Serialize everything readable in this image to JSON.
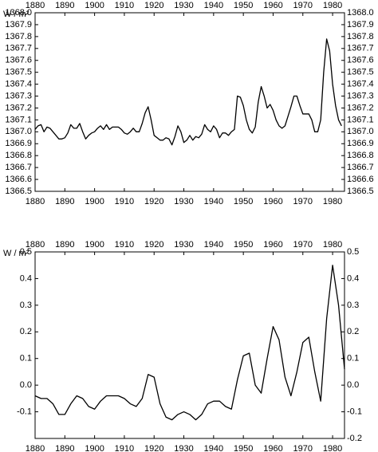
{
  "chart_data": [
    {
      "type": "line",
      "y_label": "W / m²",
      "x": [
        1880,
        1881,
        1882,
        1883,
        1884,
        1885,
        1886,
        1887,
        1888,
        1889,
        1890,
        1891,
        1892,
        1893,
        1894,
        1895,
        1896,
        1897,
        1898,
        1899,
        1900,
        1901,
        1902,
        1903,
        1904,
        1905,
        1906,
        1907,
        1908,
        1909,
        1910,
        1911,
        1912,
        1913,
        1914,
        1915,
        1916,
        1917,
        1918,
        1919,
        1920,
        1921,
        1922,
        1923,
        1924,
        1925,
        1926,
        1927,
        1928,
        1929,
        1930,
        1931,
        1932,
        1933,
        1934,
        1935,
        1936,
        1937,
        1938,
        1939,
        1940,
        1941,
        1942,
        1943,
        1944,
        1945,
        1946,
        1947,
        1948,
        1949,
        1950,
        1951,
        1952,
        1953,
        1954,
        1955,
        1956,
        1957,
        1958,
        1959,
        1960,
        1961,
        1962,
        1963,
        1964,
        1965,
        1966,
        1967,
        1968,
        1969,
        1970,
        1971,
        1972,
        1973,
        1974,
        1975,
        1976,
        1977,
        1978,
        1979,
        1980,
        1981,
        1982,
        1983
      ],
      "series": [
        {
          "color": "#000000",
          "values": [
            1367.02,
            1367.05,
            1367.06,
            1367.0,
            1367.04,
            1367.03,
            1367.0,
            1366.97,
            1366.94,
            1366.94,
            1366.95,
            1366.99,
            1367.06,
            1367.03,
            1367.03,
            1367.07,
            1367.0,
            1366.94,
            1366.97,
            1366.99,
            1367.0,
            1367.03,
            1367.05,
            1367.02,
            1367.06,
            1367.02,
            1367.04,
            1367.04,
            1367.04,
            1367.02,
            1366.99,
            1366.98,
            1367.0,
            1367.03,
            1367.0,
            1367.0,
            1367.07,
            1367.16,
            1367.21,
            1367.1,
            1366.97,
            1366.95,
            1366.93,
            1366.93,
            1366.95,
            1366.94,
            1366.89,
            1366.96,
            1367.05,
            1367.0,
            1366.91,
            1366.93,
            1366.97,
            1366.93,
            1366.96,
            1366.95,
            1366.98,
            1367.06,
            1367.02,
            1367.0,
            1367.05,
            1367.02,
            1366.95,
            1366.99,
            1366.99,
            1366.97,
            1367.0,
            1367.02,
            1367.3,
            1367.29,
            1367.22,
            1367.1,
            1367.02,
            1366.99,
            1367.04,
            1367.25,
            1367.38,
            1367.3,
            1367.2,
            1367.23,
            1367.18,
            1367.1,
            1367.05,
            1367.03,
            1367.05,
            1367.13,
            1367.21,
            1367.3,
            1367.3,
            1367.22,
            1367.15,
            1367.15,
            1367.15,
            1367.1,
            1367.0,
            1367.0,
            1367.1,
            1367.5,
            1367.78,
            1367.68,
            1367.4,
            1367.22,
            1367.1,
            1367.05
          ]
        }
      ],
      "xlim": [
        1880,
        1984
      ],
      "xticks": [
        1880,
        1890,
        1900,
        1910,
        1920,
        1930,
        1940,
        1950,
        1960,
        1970,
        1980
      ],
      "ylim": [
        1366.5,
        1368.0
      ],
      "yticks": [
        1366.5,
        1366.6,
        1366.7,
        1366.8,
        1366.9,
        {
          "value": 1367.0,
          "label": "1367.0"
        },
        1367.1,
        1367.2,
        1367.3,
        1367.4,
        1367.5,
        1367.6,
        1367.7,
        1367.8,
        1367.9,
        {
          "value": 1368.0,
          "label": "1368.0"
        }
      ]
    },
    {
      "type": "line",
      "y_label": "W / m²",
      "x": [
        1880,
        1882,
        1884,
        1886,
        1888,
        1890,
        1892,
        1894,
        1896,
        1898,
        1900,
        1902,
        1904,
        1906,
        1908,
        1910,
        1912,
        1914,
        1916,
        1918,
        1920,
        1922,
        1924,
        1926,
        1928,
        1930,
        1932,
        1934,
        1936,
        1938,
        1940,
        1942,
        1944,
        1946,
        1948,
        1950,
        1952,
        1954,
        1956,
        1958,
        1960,
        1962,
        1964,
        1966,
        1968,
        1970,
        1972,
        1974,
        1976,
        1978,
        1980,
        1982,
        1984
      ],
      "series": [
        {
          "color": "#000000",
          "values": [
            -0.04,
            -0.05,
            -0.05,
            -0.07,
            -0.11,
            -0.11,
            -0.07,
            -0.04,
            -0.05,
            -0.08,
            -0.09,
            -0.06,
            -0.04,
            -0.04,
            -0.04,
            -0.05,
            -0.07,
            -0.08,
            -0.05,
            0.04,
            0.03,
            -0.07,
            -0.12,
            -0.13,
            -0.11,
            -0.1,
            -0.11,
            -0.13,
            -0.11,
            -0.07,
            -0.06,
            -0.06,
            -0.08,
            -0.09,
            0.02,
            0.11,
            0.12,
            0.0,
            -0.03,
            0.1,
            0.22,
            0.17,
            0.03,
            -0.04,
            0.05,
            0.16,
            0.18,
            0.05,
            -0.06,
            0.25,
            0.45,
            0.3,
            0.06
          ]
        }
      ],
      "xlim": [
        1880,
        1984
      ],
      "xticks": [
        1880,
        1890,
        1900,
        1910,
        1920,
        1930,
        1940,
        1950,
        1960,
        1970,
        1980
      ],
      "ylim": [
        -0.2,
        0.5
      ],
      "yticks": [
        -0.2,
        -0.1,
        {
          "value": 0,
          "label": "0.0"
        },
        0.1,
        0.2,
        0.3,
        0.4,
        0.5
      ]
    }
  ]
}
